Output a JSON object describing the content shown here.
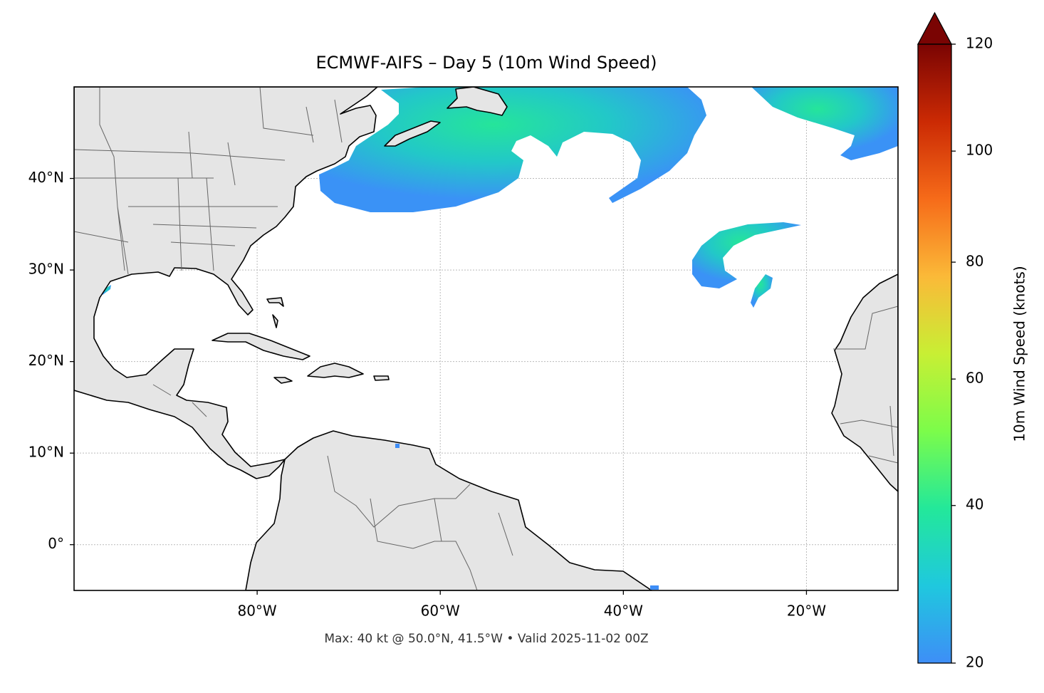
{
  "chart_data": {
    "type": "map",
    "title": "ECMWF-AIFS – Day 5 (10m Wind Speed)",
    "footer": "Max: 40 kt @ 50.0°N, 41.5°W • Valid 2025-11-02 00Z",
    "xlim": [
      -100,
      -10
    ],
    "ylim": [
      -5,
      50
    ],
    "xticks": [
      {
        "value": -80,
        "label": "80°W"
      },
      {
        "value": -60,
        "label": "60°W"
      },
      {
        "value": -40,
        "label": "40°W"
      },
      {
        "value": -20,
        "label": "20°W"
      }
    ],
    "yticks": [
      {
        "value": 0,
        "label": "0°"
      },
      {
        "value": 10,
        "label": "10°N"
      },
      {
        "value": 20,
        "label": "20°N"
      },
      {
        "value": 30,
        "label": "30°N"
      },
      {
        "value": 40,
        "label": "40°N"
      }
    ],
    "grid": true,
    "colorbar": {
      "label": "10m Wind Speed (knots)",
      "lim": [
        20,
        120
      ],
      "ticks": [
        20,
        40,
        60,
        80,
        100,
        120
      ],
      "gamma": 0.85,
      "extend": "max",
      "colors": [
        "#3e8ef7",
        "#1fc8de",
        "#23e89a",
        "#7cfc4a",
        "#c8ef34",
        "#fbb938",
        "#f66b19",
        "#cb2a04",
        "#7a0403"
      ]
    }
  }
}
